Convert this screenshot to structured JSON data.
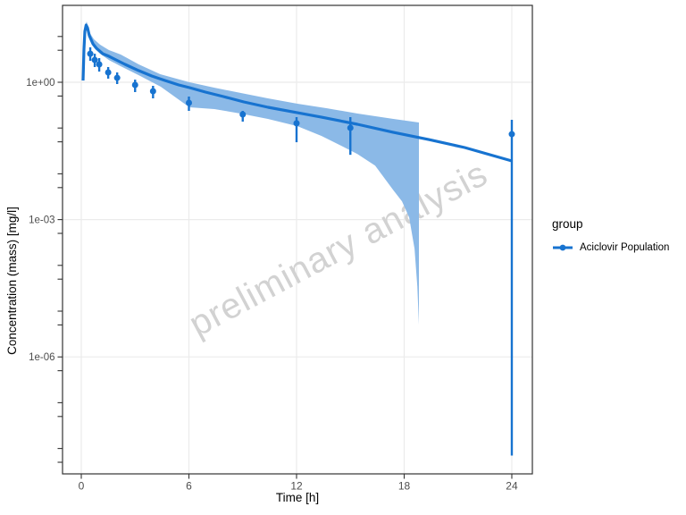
{
  "watermark": {
    "text": "preliminary analysis"
  },
  "legend": {
    "title": "group",
    "items": [
      {
        "label": "Aciclovir Population",
        "marker": "line-dot"
      }
    ]
  },
  "axes": {
    "x": {
      "title": "Time [h]",
      "range": [
        -1,
        25.2
      ],
      "ticks": [
        {
          "value": 0,
          "label": "0"
        },
        {
          "value": 6,
          "label": "6"
        },
        {
          "value": 12,
          "label": "12"
        },
        {
          "value": 18,
          "label": "18"
        },
        {
          "value": 24,
          "label": "24"
        }
      ]
    },
    "y": {
      "title": "Concentration (mass) [mg/l]",
      "scale": "log10",
      "major_ticks": [
        {
          "value": 1,
          "label": "1e+00"
        },
        {
          "value": 0.001,
          "label": "1e-03"
        },
        {
          "value": 1e-06,
          "label": "1e-06"
        }
      ],
      "minor_tick_values": [
        10,
        5,
        0.5,
        0.1,
        0.05,
        0.01,
        0.005,
        0.0005,
        0.0001,
        5e-05,
        1e-05,
        5e-06,
        5e-07,
        1e-07,
        5e-08,
        1e-08,
        5e-09
      ]
    }
  },
  "chart_data": {
    "type": "line",
    "title": "",
    "xlabel": "Time [h]",
    "ylabel": "Concentration (mass) [mg/l]",
    "grid": "major-only",
    "legend_position": "right",
    "series": [
      {
        "name": "Aciclovir Population simulated mean",
        "type": "line",
        "points": [
          [
            0.1,
            1.09
          ],
          [
            0.15,
            5.3
          ],
          [
            0.2,
            12.9
          ],
          [
            0.27,
            17.8
          ],
          [
            0.35,
            15.5
          ],
          [
            0.45,
            10.4
          ],
          [
            0.65,
            6.9
          ],
          [
            0.85,
            5.5
          ],
          [
            1.2,
            4.2
          ],
          [
            1.54,
            3.7
          ],
          [
            1.94,
            3.08
          ],
          [
            2.44,
            2.46
          ],
          [
            3.19,
            1.8
          ],
          [
            3.93,
            1.37
          ],
          [
            4.68,
            1.09
          ],
          [
            5.43,
            0.874
          ],
          [
            6.03,
            0.763
          ],
          [
            6.92,
            0.61
          ],
          [
            7.92,
            0.487
          ],
          [
            9.06,
            0.372
          ],
          [
            10.41,
            0.284
          ],
          [
            12.05,
            0.216
          ],
          [
            13.4,
            0.172
          ],
          [
            15.39,
            0.121
          ],
          [
            17.38,
            0.081
          ],
          [
            19.37,
            0.056
          ],
          [
            21.37,
            0.0375
          ],
          [
            24.0,
            0.0191
          ]
        ]
      },
      {
        "name": "Aciclovir Population prediction ribbon",
        "type": "area",
        "upper": [
          [
            0.13,
            1.1
          ],
          [
            0.2,
            16.3
          ],
          [
            0.3,
            21.3
          ],
          [
            0.45,
            12.4
          ],
          [
            0.7,
            8.7
          ],
          [
            1.05,
            6.6
          ],
          [
            1.54,
            5.05
          ],
          [
            2.2,
            4.03
          ],
          [
            3.2,
            2.46
          ],
          [
            4.4,
            1.5
          ],
          [
            6.03,
            1.0
          ],
          [
            7.4,
            0.763
          ],
          [
            8.9,
            0.583
          ],
          [
            10.4,
            0.445
          ],
          [
            12.05,
            0.34
          ],
          [
            13.7,
            0.27
          ],
          [
            15.4,
            0.207
          ],
          [
            17.4,
            0.158
          ],
          [
            18.82,
            0.132
          ]
        ],
        "lower": [
          [
            0.13,
            1.1
          ],
          [
            0.2,
            13.0
          ],
          [
            0.3,
            16.3
          ],
          [
            0.45,
            8.7
          ],
          [
            0.7,
            5.75
          ],
          [
            1.05,
            4.2
          ],
          [
            1.54,
            3.07
          ],
          [
            2.19,
            2.25
          ],
          [
            3.19,
            1.43
          ],
          [
            4.43,
            0.8
          ],
          [
            6.03,
            0.284
          ],
          [
            7.42,
            0.259
          ],
          [
            8.91,
            0.206
          ],
          [
            10.4,
            0.158
          ],
          [
            12.05,
            0.11
          ],
          [
            13.4,
            0.067
          ],
          [
            14.4,
            0.0427
          ],
          [
            15.39,
            0.0272
          ],
          [
            16.38,
            0.0151
          ],
          [
            17.38,
            0.00449
          ],
          [
            17.88,
            0.00249
          ],
          [
            18.28,
            0.00111
          ],
          [
            18.58,
            0.00023
          ],
          [
            18.73,
            3.5e-05
          ],
          [
            18.82,
            5.1e-06
          ]
        ]
      },
      {
        "name": "Aciclovir Population observed",
        "type": "scatter-errorbar",
        "points": [
          {
            "t": 0.5,
            "mean": 4.2,
            "lo": 2.94,
            "hi": 5.8
          },
          {
            "t": 0.75,
            "mean": 3.07,
            "lo": 2.15,
            "hi": 4.2
          },
          {
            "t": 1,
            "mean": 2.46,
            "lo": 1.71,
            "hi": 3.37
          },
          {
            "t": 1.5,
            "mean": 1.64,
            "lo": 1.2,
            "hi": 2.15
          },
          {
            "t": 2,
            "mean": 1.25,
            "lo": 0.914,
            "hi": 1.64
          },
          {
            "t": 3,
            "mean": 0.874,
            "lo": 0.61,
            "hi": 1.14
          },
          {
            "t": 4,
            "mean": 0.637,
            "lo": 0.445,
            "hi": 0.835
          },
          {
            "t": 6,
            "mean": 0.355,
            "lo": 0.237,
            "hi": 0.487
          },
          {
            "t": 9,
            "mean": 0.198,
            "lo": 0.138,
            "hi": 0.237
          },
          {
            "t": 12,
            "mean": 0.127,
            "lo": 0.049,
            "hi": 0.173
          },
          {
            "t": 15,
            "mean": 0.101,
            "lo": 0.026,
            "hi": 0.173
          },
          {
            "t": 24,
            "mean": 0.0735,
            "lo": 7e-09,
            "hi": 0.151
          }
        ]
      }
    ]
  },
  "colors": {
    "line": "#1773d0",
    "point": "#1773d0",
    "ribbon": "#8bb9e7",
    "grid": "#ebebeb",
    "axis": "#333333",
    "tick_label": "#4d4d4d",
    "title_text": "#000000",
    "watermark": "#d2d2d2",
    "background": "#ffffff"
  }
}
